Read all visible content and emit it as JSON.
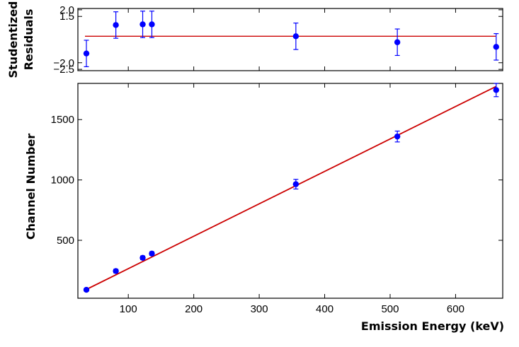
{
  "colors": {
    "points": "#0000ff",
    "fit_line": "#cc0000",
    "background": "#ffffff",
    "axes": "#000000"
  },
  "chart_data": [
    {
      "type": "scatter",
      "title": "",
      "xlabel": "",
      "ylabel": "Studentized Residuals",
      "ylabel_lines": [
        "Studentized",
        "Residuals"
      ],
      "xlim": [
        23,
        672
      ],
      "ylim": [
        -2.6,
        2.1
      ],
      "yticks": [
        2.0,
        1.5,
        -2.0,
        -2.5
      ],
      "ytick_labels": [
        "2.0",
        "1.5",
        "−2.0",
        "−2.5"
      ],
      "reference_line": 0,
      "grid": false,
      "series": [
        {
          "x": [
            36,
            81,
            122,
            136,
            356,
            511,
            662
          ],
          "y": [
            -1.3,
            0.85,
            0.9,
            0.9,
            0.0,
            -0.45,
            -0.8
          ],
          "yerr": [
            1.0,
            1.0,
            1.0,
            1.0,
            1.0,
            1.0,
            1.0
          ]
        }
      ]
    },
    {
      "type": "scatter",
      "title": "",
      "xlabel": "Emission Energy (keV)",
      "ylabel": "Channel Number",
      "xlim": [
        23,
        672
      ],
      "ylim": [
        20,
        1800
      ],
      "xticks": [
        100,
        200,
        300,
        400,
        500,
        600
      ],
      "xtick_labels": [
        "100",
        "200",
        "300",
        "400",
        "500",
        "600"
      ],
      "yticks": [
        500,
        1000,
        1500
      ],
      "ytick_labels": [
        "500",
        "1000",
        "1500"
      ],
      "grid": false,
      "series": [
        {
          "x": [
            36,
            81,
            122,
            136,
            356,
            511,
            662
          ],
          "y": [
            90,
            245,
            355,
            390,
            965,
            1360,
            1745
          ],
          "yerr": [
            12,
            15,
            15,
            15,
            40,
            45,
            55
          ]
        }
      ],
      "fit_line": {
        "x": [
          36,
          662
        ],
        "y": [
          93,
          1775
        ]
      }
    }
  ]
}
